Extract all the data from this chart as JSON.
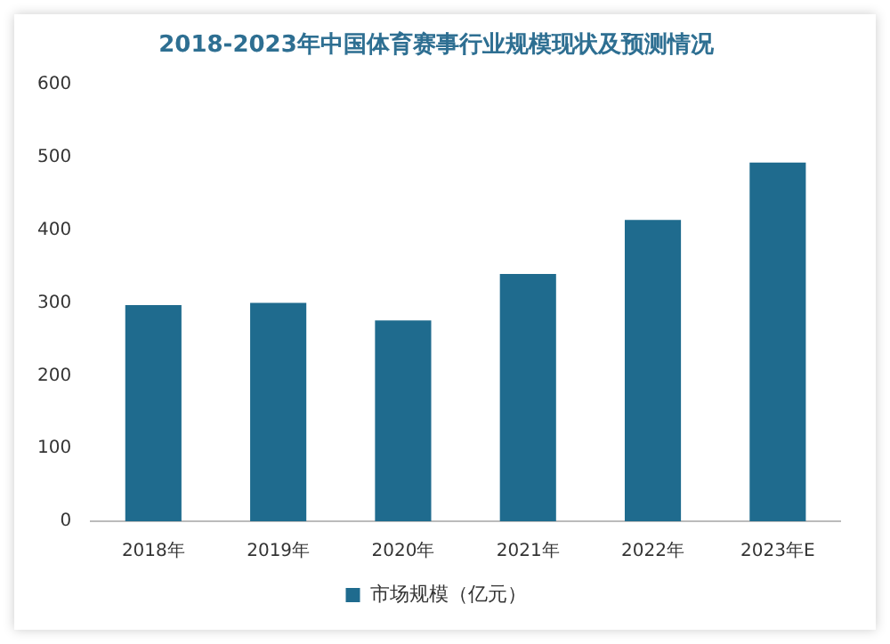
{
  "chart_data": {
    "type": "bar",
    "title": "2018-2023年中国体育赛事行业规模现状及预测情况",
    "categories": [
      "2018年",
      "2019年",
      "2020年",
      "2021年",
      "2022年",
      "2023年E"
    ],
    "series": [
      {
        "name": "市场规模（亿元）",
        "color": "#1f6b8e",
        "values": [
          297,
          300,
          276,
          340,
          414,
          493
        ]
      }
    ],
    "ylim": [
      0,
      600
    ],
    "yticks": [
      0,
      100,
      200,
      300,
      400,
      500,
      600
    ],
    "grid": false,
    "legend": "bottom"
  }
}
